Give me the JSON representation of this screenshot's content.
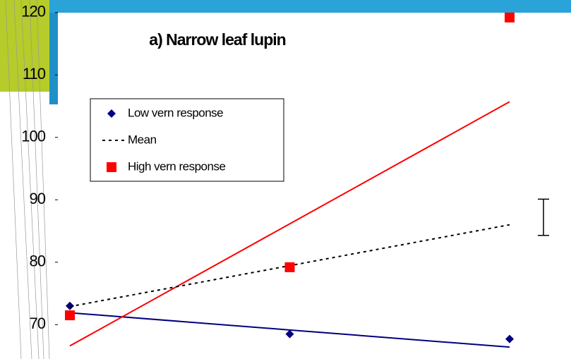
{
  "chart_data": {
    "type": "line",
    "title": "a) Narrow leaf lupin",
    "categories": [
      null,
      null,
      null
    ],
    "series": [
      {
        "name": "Low vern response",
        "color": "#000080",
        "marker": "diamond",
        "values": [
          73.0,
          68.5,
          67.7
        ]
      },
      {
        "name": "Mean",
        "color": "#000000",
        "style": "dotted",
        "values": [
          72.9,
          79.45,
          86.0
        ]
      },
      {
        "name": "High vern response",
        "color": "#ff0000",
        "marker": "square",
        "values": [
          71.5,
          79.2,
          119.2
        ]
      }
    ],
    "trendlines": [
      {
        "color": "#000080",
        "values": [
          71.9,
          69.15,
          66.4
        ]
      },
      {
        "color": "#ff0000",
        "values": [
          66.6,
          86.15,
          105.7
        ]
      }
    ],
    "error_bar": {
      "low": 84.3,
      "high": 90.1
    },
    "ylim": [
      64.5,
      122
    ],
    "yticks": [
      70,
      80,
      90,
      100,
      110,
      120
    ],
    "legend": "upper-left"
  }
}
